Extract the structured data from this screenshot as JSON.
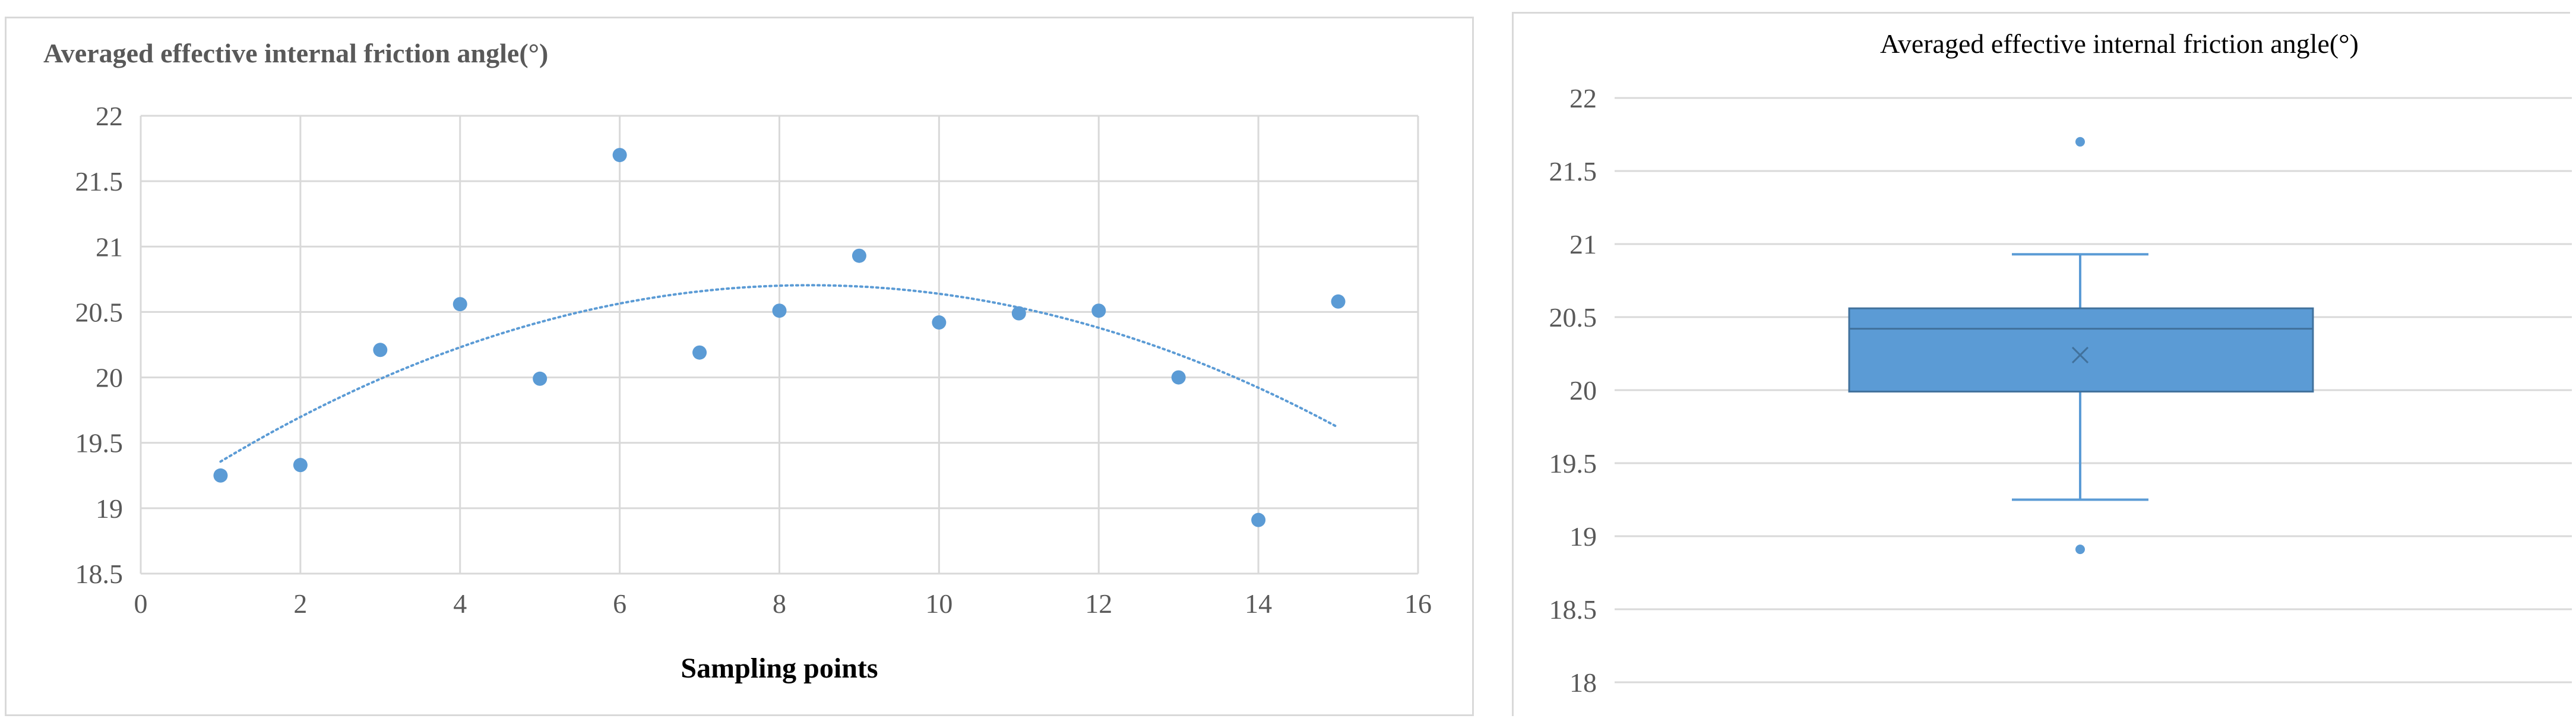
{
  "chart_data": [
    {
      "type": "scatter",
      "title": "Averaged effective internal friction angle(°)",
      "xlabel": "Sampling points",
      "ylabel": "",
      "xlim": [
        0,
        16
      ],
      "ylim": [
        18.5,
        22
      ],
      "xticks": [
        "0",
        "2",
        "4",
        "6",
        "8",
        "10",
        "12",
        "14",
        "16"
      ],
      "yticks": [
        "18.5",
        "19",
        "19.5",
        "20",
        "20.5",
        "21",
        "21.5",
        "22"
      ],
      "grid": true,
      "x": [
        1,
        2,
        3,
        4,
        5,
        6,
        7,
        8,
        9,
        10,
        11,
        12,
        13,
        14,
        15
      ],
      "y": [
        19.25,
        19.33,
        20.21,
        20.56,
        19.99,
        21.7,
        20.19,
        20.51,
        20.93,
        20.42,
        20.49,
        20.51,
        20.0,
        18.91,
        20.58
      ],
      "trendline": {
        "type": "polynomial-order-2",
        "style": "dotted",
        "x_range": [
          1,
          15
        ]
      },
      "color": "#5b9bd5"
    },
    {
      "type": "box",
      "title": "Averaged effective internal friction angle(°)",
      "xlabel": "",
      "ylabel": "",
      "ylim": [
        18,
        22
      ],
      "yticks": [
        "18",
        "18.5",
        "19",
        "19.5",
        "20",
        "20.5",
        "21",
        "21.5",
        "22"
      ],
      "grid": true,
      "min_whisker": 19.25,
      "q1": 19.99,
      "median": 20.42,
      "q3": 20.56,
      "max_whisker": 20.93,
      "mean": 20.24,
      "outliers": [
        21.7,
        18.91
      ],
      "color": "#5b9bd5"
    }
  ]
}
